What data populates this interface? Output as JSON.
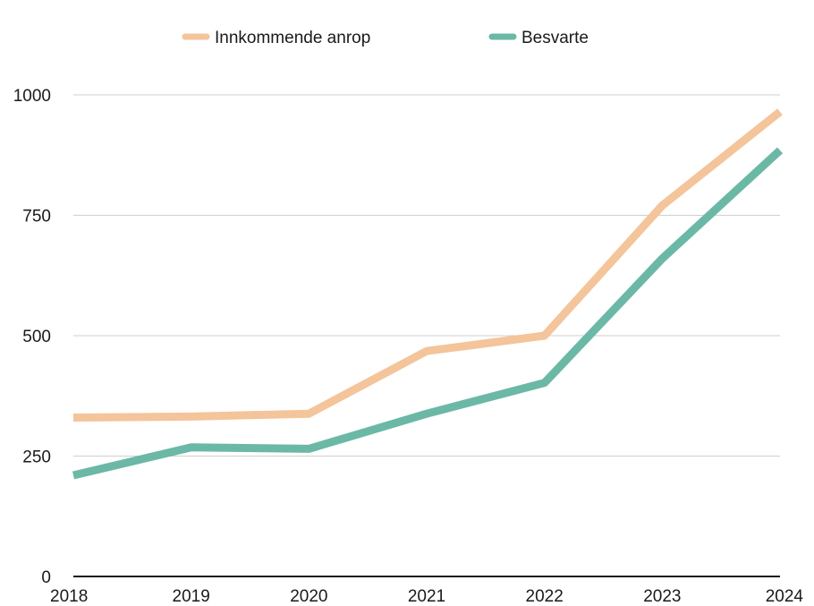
{
  "chart_data": {
    "type": "line",
    "title": "",
    "xlabel": "",
    "ylabel": "",
    "categories": [
      "2018",
      "2019",
      "2020",
      "2021",
      "2022",
      "2023",
      "2024"
    ],
    "series": [
      {
        "name": "Innkommende anrop",
        "color": "#F4C49A",
        "values": [
          330,
          332,
          338,
          468,
          500,
          770,
          965
        ]
      },
      {
        "name": "Besvarte",
        "color": "#6BB8A6",
        "values": [
          210,
          268,
          265,
          338,
          402,
          660,
          885
        ]
      }
    ],
    "ylim": [
      0,
      1000
    ],
    "yticks": [
      "0",
      "250",
      "500",
      "750",
      "1000"
    ],
    "grid": true,
    "legend": "top"
  }
}
